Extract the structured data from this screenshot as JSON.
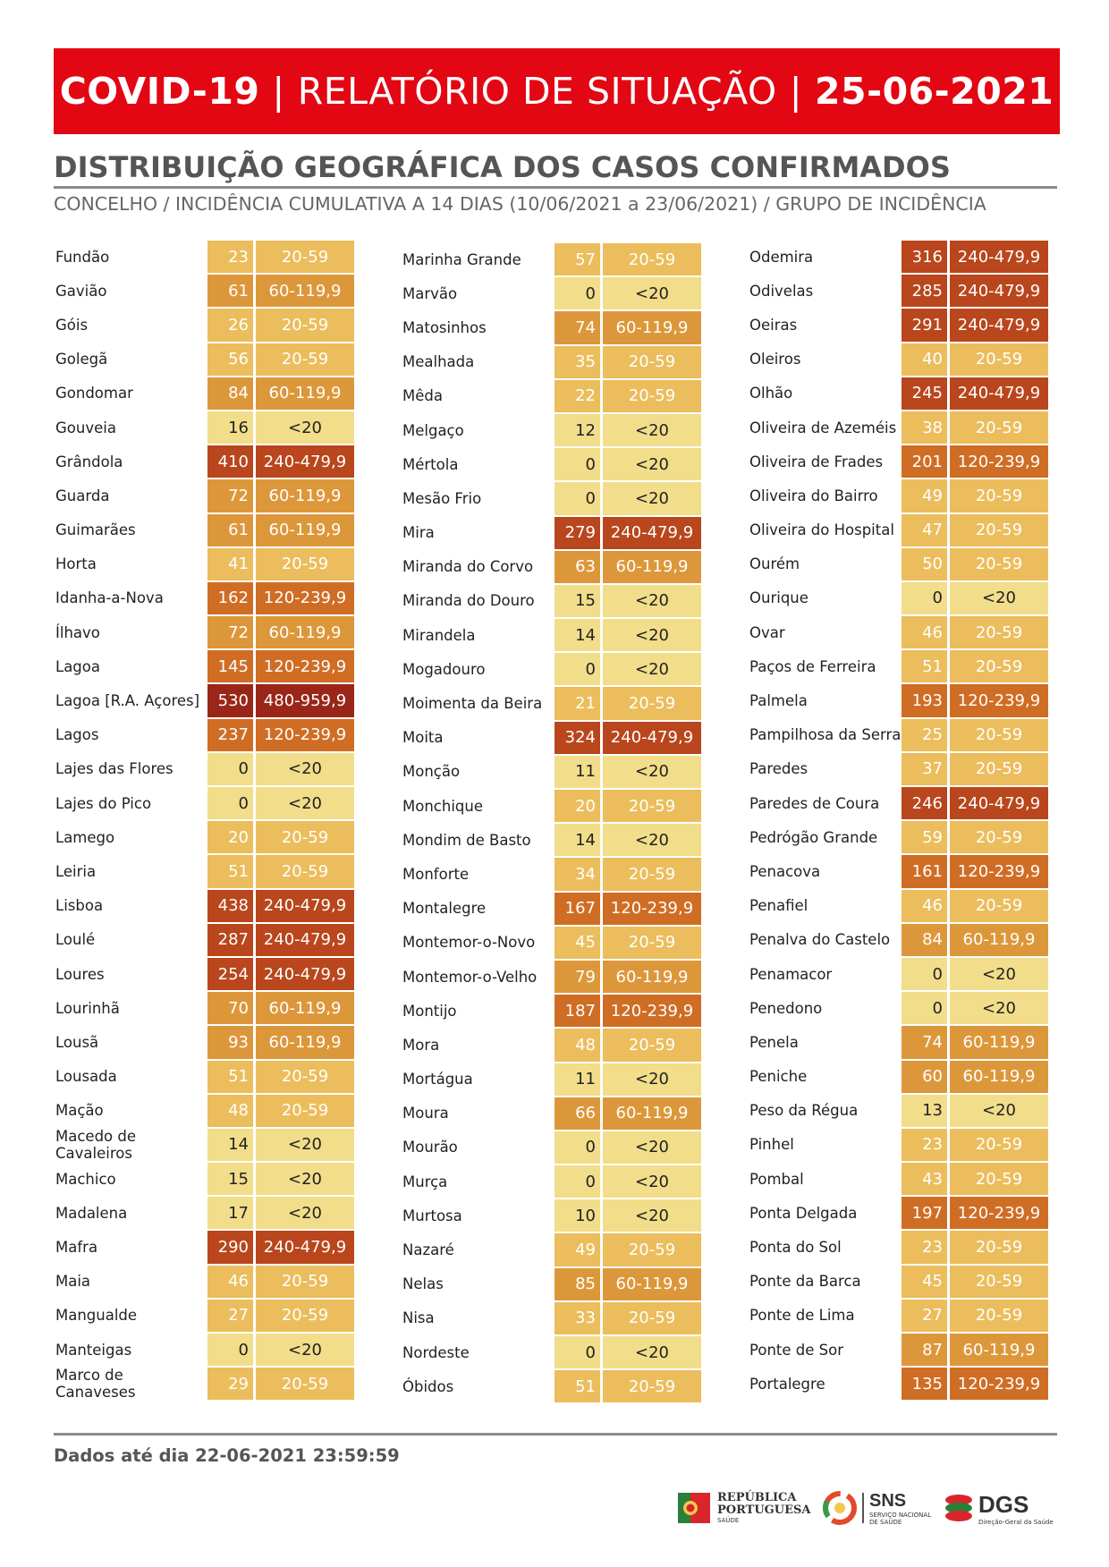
{
  "header": {
    "title_a": "COVID-19",
    "sep1": "|",
    "title_b": "RELATÓRIO DE SITUAÇÃO",
    "sep2": "|",
    "date": "25-06-2021"
  },
  "section_title": "DISTRIBUIÇÃO GEOGRÁFICA DOS CASOS CONFIRMADOS",
  "subtitle": "CONCELHO / INCIDÊNCIA CUMULATIVA A 14 DIAS (10/06/2021 a 23/06/2021) / GRUPO DE INCIDÊNCIA",
  "table": {
    "columns": [
      [
        {
          "name": "Fundão",
          "value": "23",
          "group": "20-59"
        },
        {
          "name": "Gavião",
          "value": "61",
          "group": "60-119,9"
        },
        {
          "name": "Góis",
          "value": "26",
          "group": "20-59"
        },
        {
          "name": "Golegã",
          "value": "56",
          "group": "20-59"
        },
        {
          "name": "Gondomar",
          "value": "84",
          "group": "60-119,9"
        },
        {
          "name": "Gouveia",
          "value": "16",
          "group": "<20"
        },
        {
          "name": "Grândola",
          "value": "410",
          "group": "240-479,9"
        },
        {
          "name": "Guarda",
          "value": "72",
          "group": "60-119,9"
        },
        {
          "name": "Guimarães",
          "value": "61",
          "group": "60-119,9"
        },
        {
          "name": "Horta",
          "value": "41",
          "group": "20-59"
        },
        {
          "name": "Idanha-a-Nova",
          "value": "162",
          "group": "120-239,9"
        },
        {
          "name": "Ílhavo",
          "value": "72",
          "group": "60-119,9"
        },
        {
          "name": "Lagoa",
          "value": "145",
          "group": "120-239,9"
        },
        {
          "name": "Lagoa [R.A. Açores]",
          "value": "530",
          "group": "480-959,9"
        },
        {
          "name": "Lagos",
          "value": "237",
          "group": "120-239,9"
        },
        {
          "name": "Lajes das Flores",
          "value": "0",
          "group": "<20"
        },
        {
          "name": "Lajes do Pico",
          "value": "0",
          "group": "<20"
        },
        {
          "name": "Lamego",
          "value": "20",
          "group": "20-59"
        },
        {
          "name": "Leiria",
          "value": "51",
          "group": "20-59"
        },
        {
          "name": "Lisboa",
          "value": "438",
          "group": "240-479,9"
        },
        {
          "name": "Loulé",
          "value": "287",
          "group": "240-479,9"
        },
        {
          "name": "Loures",
          "value": "254",
          "group": "240-479,9"
        },
        {
          "name": "Lourinhã",
          "value": "70",
          "group": "60-119,9"
        },
        {
          "name": "Lousã",
          "value": "93",
          "group": "60-119,9"
        },
        {
          "name": "Lousada",
          "value": "51",
          "group": "20-59"
        },
        {
          "name": "Mação",
          "value": "48",
          "group": "20-59"
        },
        {
          "name": "Macedo de Cavaleiros",
          "value": "14",
          "group": "<20"
        },
        {
          "name": "Machico",
          "value": "15",
          "group": "<20"
        },
        {
          "name": "Madalena",
          "value": "17",
          "group": "<20"
        },
        {
          "name": "Mafra",
          "value": "290",
          "group": "240-479,9"
        },
        {
          "name": "Maia",
          "value": "46",
          "group": "20-59"
        },
        {
          "name": "Mangualde",
          "value": "27",
          "group": "20-59"
        },
        {
          "name": "Manteigas",
          "value": "0",
          "group": "<20"
        },
        {
          "name": "Marco de Canaveses",
          "value": "29",
          "group": "20-59"
        }
      ],
      [
        {
          "name": "Marinha Grande",
          "value": "57",
          "group": "20-59"
        },
        {
          "name": "Marvão",
          "value": "0",
          "group": "<20"
        },
        {
          "name": "Matosinhos",
          "value": "74",
          "group": "60-119,9"
        },
        {
          "name": "Mealhada",
          "value": "35",
          "group": "20-59"
        },
        {
          "name": "Mêda",
          "value": "22",
          "group": "20-59"
        },
        {
          "name": "Melgaço",
          "value": "12",
          "group": "<20"
        },
        {
          "name": "Mértola",
          "value": "0",
          "group": "<20"
        },
        {
          "name": "Mesão Frio",
          "value": "0",
          "group": "<20"
        },
        {
          "name": "Mira",
          "value": "279",
          "group": "240-479,9"
        },
        {
          "name": "Miranda do Corvo",
          "value": "63",
          "group": "60-119,9"
        },
        {
          "name": "Miranda do Douro",
          "value": "15",
          "group": "<20"
        },
        {
          "name": "Mirandela",
          "value": "14",
          "group": "<20"
        },
        {
          "name": "Mogadouro",
          "value": "0",
          "group": "<20"
        },
        {
          "name": "Moimenta da Beira",
          "value": "21",
          "group": "20-59"
        },
        {
          "name": "Moita",
          "value": "324",
          "group": "240-479,9"
        },
        {
          "name": "Monção",
          "value": "11",
          "group": "<20"
        },
        {
          "name": "Monchique",
          "value": "20",
          "group": "20-59"
        },
        {
          "name": "Mondim de Basto",
          "value": "14",
          "group": "<20"
        },
        {
          "name": "Monforte",
          "value": "34",
          "group": "20-59"
        },
        {
          "name": "Montalegre",
          "value": "167",
          "group": "120-239,9"
        },
        {
          "name": "Montemor-o-Novo",
          "value": "45",
          "group": "20-59"
        },
        {
          "name": "Montemor-o-Velho",
          "value": "79",
          "group": "60-119,9"
        },
        {
          "name": "Montijo",
          "value": "187",
          "group": "120-239,9"
        },
        {
          "name": "Mora",
          "value": "48",
          "group": "20-59"
        },
        {
          "name": "Mortágua",
          "value": "11",
          "group": "<20"
        },
        {
          "name": "Moura",
          "value": "66",
          "group": "60-119,9"
        },
        {
          "name": "Mourão",
          "value": "0",
          "group": "<20"
        },
        {
          "name": "Murça",
          "value": "0",
          "group": "<20"
        },
        {
          "name": "Murtosa",
          "value": "10",
          "group": "<20"
        },
        {
          "name": "Nazaré",
          "value": "49",
          "group": "20-59"
        },
        {
          "name": "Nelas",
          "value": "85",
          "group": "60-119,9"
        },
        {
          "name": "Nisa",
          "value": "33",
          "group": "20-59"
        },
        {
          "name": "Nordeste",
          "value": "0",
          "group": "<20"
        },
        {
          "name": "Óbidos",
          "value": "51",
          "group": "20-59"
        }
      ],
      [
        {
          "name": "Odemira",
          "value": "316",
          "group": "240-479,9"
        },
        {
          "name": "Odivelas",
          "value": "285",
          "group": "240-479,9"
        },
        {
          "name": "Oeiras",
          "value": "291",
          "group": "240-479,9"
        },
        {
          "name": "Oleiros",
          "value": "40",
          "group": "20-59"
        },
        {
          "name": "Olhão",
          "value": "245",
          "group": "240-479,9"
        },
        {
          "name": "Oliveira de Azeméis",
          "value": "38",
          "group": "20-59"
        },
        {
          "name": "Oliveira de Frades",
          "value": "201",
          "group": "120-239,9"
        },
        {
          "name": "Oliveira do Bairro",
          "value": "49",
          "group": "20-59"
        },
        {
          "name": "Oliveira do Hospital",
          "value": "47",
          "group": "20-59"
        },
        {
          "name": "Ourém",
          "value": "50",
          "group": "20-59"
        },
        {
          "name": "Ourique",
          "value": "0",
          "group": "<20"
        },
        {
          "name": "Ovar",
          "value": "46",
          "group": "20-59"
        },
        {
          "name": "Paços de Ferreira",
          "value": "51",
          "group": "20-59"
        },
        {
          "name": "Palmela",
          "value": "193",
          "group": "120-239,9"
        },
        {
          "name": "Pampilhosa da Serra",
          "value": "25",
          "group": "20-59"
        },
        {
          "name": "Paredes",
          "value": "37",
          "group": "20-59"
        },
        {
          "name": "Paredes de Coura",
          "value": "246",
          "group": "240-479,9"
        },
        {
          "name": "Pedrógão Grande",
          "value": "59",
          "group": "20-59"
        },
        {
          "name": "Penacova",
          "value": "161",
          "group": "120-239,9"
        },
        {
          "name": "Penafiel",
          "value": "46",
          "group": "20-59"
        },
        {
          "name": "Penalva do Castelo",
          "value": "84",
          "group": "60-119,9"
        },
        {
          "name": "Penamacor",
          "value": "0",
          "group": "<20"
        },
        {
          "name": "Penedono",
          "value": "0",
          "group": "<20"
        },
        {
          "name": "Penela",
          "value": "74",
          "group": "60-119,9"
        },
        {
          "name": "Peniche",
          "value": "60",
          "group": "60-119,9"
        },
        {
          "name": "Peso da Régua",
          "value": "13",
          "group": "<20"
        },
        {
          "name": "Pinhel",
          "value": "23",
          "group": "20-59"
        },
        {
          "name": "Pombal",
          "value": "43",
          "group": "20-59"
        },
        {
          "name": "Ponta Delgada",
          "value": "197",
          "group": "120-239,9"
        },
        {
          "name": "Ponta do Sol",
          "value": "23",
          "group": "20-59"
        },
        {
          "name": "Ponte da Barca",
          "value": "45",
          "group": "20-59"
        },
        {
          "name": "Ponte de Lima",
          "value": "27",
          "group": "20-59"
        },
        {
          "name": "Ponte de Sor",
          "value": "87",
          "group": "60-119,9"
        },
        {
          "name": "Portalegre",
          "value": "135",
          "group": "120-239,9"
        }
      ]
    ]
  },
  "footer": {
    "note": "Dados até dia 22-06-2021 23:59:59",
    "logo_rp_line1": "REPÚBLICA",
    "logo_rp_line2": "PORTUGUESA",
    "logo_rp_sub": "SAÚDE",
    "logo_sns": "SNS",
    "logo_sns_sub1": "SERVIÇO NACIONAL",
    "logo_sns_sub2": "DE SAÚDE",
    "logo_dgs": "DGS",
    "logo_dgs_sub": "Direção-Geral da Saúde"
  }
}
